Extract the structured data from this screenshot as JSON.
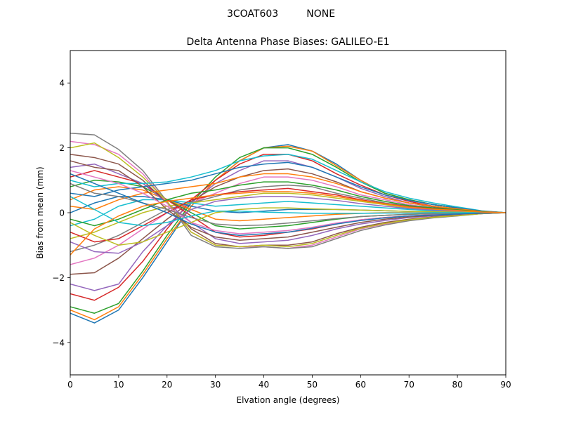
{
  "figure": {
    "suptitle": "3COAT603         NONE"
  },
  "chart_data": {
    "type": "line",
    "title": "Delta Antenna Phase Biases: GALILEO-E1",
    "xlabel": "Elvation angle (degrees)",
    "ylabel": "Bias from mean (mm)",
    "xlim": [
      0,
      90
    ],
    "ylim": [
      -5,
      5
    ],
    "xticks": [
      0,
      10,
      20,
      30,
      40,
      50,
      60,
      70,
      80,
      90
    ],
    "yticks": [
      -4,
      -2,
      0,
      2,
      4
    ],
    "ytick_labels": [
      "−4",
      "−2",
      "0",
      "2",
      "4"
    ],
    "grid": false,
    "legend": "none",
    "colors": [
      "#1f77b4",
      "#ff7f0e",
      "#2ca02c",
      "#d62728",
      "#9467bd",
      "#8c564b",
      "#e377c2",
      "#7f7f7f",
      "#bcbd22",
      "#17becf"
    ],
    "x": [
      0,
      5,
      10,
      15,
      20,
      25,
      30,
      35,
      40,
      45,
      50,
      55,
      60,
      65,
      70,
      75,
      80,
      85,
      90
    ],
    "series": [
      {
        "values": [
          -3.1,
          -3.4,
          -3.0,
          -2.0,
          -0.9,
          0.2,
          1.0,
          1.6,
          2.0,
          2.1,
          1.9,
          1.5,
          1.0,
          0.6,
          0.4,
          0.25,
          0.15,
          0.05,
          0.0
        ]
      },
      {
        "values": [
          -3.0,
          -3.3,
          -2.9,
          -1.9,
          -0.8,
          0.2,
          1.0,
          1.6,
          2.0,
          2.05,
          1.9,
          1.45,
          1.0,
          0.6,
          0.4,
          0.25,
          0.15,
          0.05,
          0.0
        ]
      },
      {
        "values": [
          -2.9,
          -3.1,
          -2.8,
          -1.8,
          -0.7,
          0.3,
          1.1,
          1.7,
          2.0,
          2.0,
          1.8,
          1.4,
          0.95,
          0.6,
          0.4,
          0.25,
          0.15,
          0.05,
          0.0
        ]
      },
      {
        "values": [
          -2.5,
          -2.7,
          -2.3,
          -1.5,
          -0.5,
          0.4,
          1.0,
          1.5,
          1.8,
          1.8,
          1.6,
          1.2,
          0.85,
          0.55,
          0.35,
          0.2,
          0.12,
          0.04,
          0.0
        ]
      },
      {
        "values": [
          -2.2,
          -2.4,
          -2.2,
          -1.2,
          -0.4,
          0.3,
          0.9,
          1.3,
          1.6,
          1.6,
          1.4,
          1.1,
          0.75,
          0.5,
          0.3,
          0.2,
          0.1,
          0.04,
          0.0
        ]
      },
      {
        "values": [
          -1.9,
          -1.85,
          -1.4,
          -0.8,
          -0.2,
          0.35,
          0.8,
          1.1,
          1.3,
          1.35,
          1.2,
          0.95,
          0.65,
          0.45,
          0.3,
          0.18,
          0.1,
          0.03,
          0.0
        ]
      },
      {
        "values": [
          -1.6,
          -1.4,
          -1.0,
          -0.5,
          0.0,
          0.3,
          0.6,
          0.9,
          1.1,
          1.1,
          1.0,
          0.8,
          0.55,
          0.4,
          0.25,
          0.15,
          0.08,
          0.03,
          0.0
        ]
      },
      {
        "values": [
          -1.2,
          -1.0,
          -0.7,
          -0.3,
          0.1,
          0.3,
          0.5,
          0.7,
          0.8,
          0.85,
          0.8,
          0.6,
          0.45,
          0.3,
          0.2,
          0.12,
          0.07,
          0.02,
          0.0
        ]
      },
      {
        "values": [
          -0.8,
          -0.6,
          -0.3,
          0.0,
          0.2,
          0.3,
          0.4,
          0.5,
          0.6,
          0.6,
          0.55,
          0.45,
          0.35,
          0.25,
          0.15,
          0.1,
          0.05,
          0.02,
          0.0
        ]
      },
      {
        "values": [
          -0.4,
          -0.2,
          0.2,
          0.4,
          0.4,
          0.3,
          0.2,
          0.25,
          0.3,
          0.35,
          0.3,
          0.25,
          0.2,
          0.15,
          0.1,
          0.06,
          0.04,
          0.01,
          0.0
        ]
      },
      {
        "values": [
          0.0,
          0.3,
          0.5,
          0.5,
          0.4,
          0.2,
          0.05,
          0.0,
          0.05,
          0.1,
          0.1,
          0.1,
          0.08,
          0.06,
          0.04,
          0.03,
          0.02,
          0.01,
          0.0
        ]
      },
      {
        "values": [
          0.4,
          0.7,
          0.8,
          0.7,
          0.4,
          0.1,
          -0.2,
          -0.25,
          -0.2,
          -0.15,
          -0.1,
          -0.05,
          -0.02,
          0.0,
          0.0,
          0.0,
          0.0,
          0.0,
          0.0
        ]
      },
      {
        "values": [
          0.8,
          1.0,
          0.95,
          0.8,
          0.4,
          0.0,
          -0.4,
          -0.5,
          -0.45,
          -0.4,
          -0.3,
          -0.2,
          -0.12,
          -0.08,
          -0.05,
          -0.03,
          -0.02,
          -0.01,
          0.0
        ]
      },
      {
        "values": [
          1.1,
          1.3,
          1.1,
          0.9,
          0.4,
          -0.1,
          -0.6,
          -0.75,
          -0.7,
          -0.6,
          -0.5,
          -0.35,
          -0.22,
          -0.15,
          -0.1,
          -0.06,
          -0.04,
          -0.01,
          0.0
        ]
      },
      {
        "values": [
          1.4,
          1.5,
          1.2,
          0.9,
          0.3,
          -0.3,
          -0.8,
          -0.95,
          -0.9,
          -0.85,
          -0.7,
          -0.5,
          -0.35,
          -0.24,
          -0.15,
          -0.1,
          -0.06,
          -0.02,
          0.0
        ]
      },
      {
        "values": [
          1.8,
          1.7,
          1.5,
          1.0,
          0.3,
          -0.5,
          -0.95,
          -1.05,
          -1.0,
          -1.0,
          -0.9,
          -0.65,
          -0.45,
          -0.3,
          -0.2,
          -0.13,
          -0.08,
          -0.03,
          0.0
        ]
      },
      {
        "values": [
          2.2,
          2.1,
          1.8,
          1.2,
          0.3,
          -0.6,
          -1.0,
          -1.05,
          -1.05,
          -1.1,
          -1.0,
          -0.75,
          -0.5,
          -0.35,
          -0.23,
          -0.15,
          -0.09,
          -0.03,
          0.0
        ]
      },
      {
        "values": [
          2.45,
          2.4,
          1.95,
          1.3,
          0.35,
          -0.7,
          -1.05,
          -1.1,
          -1.05,
          -1.1,
          -1.05,
          -0.8,
          -0.55,
          -0.38,
          -0.25,
          -0.16,
          -0.1,
          -0.03,
          0.0
        ]
      },
      {
        "values": [
          2.0,
          2.15,
          1.7,
          1.1,
          0.35,
          -0.6,
          -1.0,
          -1.05,
          -1.0,
          -1.05,
          -0.95,
          -0.7,
          -0.48,
          -0.33,
          -0.22,
          -0.14,
          -0.09,
          -0.03,
          0.0
        ]
      },
      {
        "values": [
          1.0,
          0.8,
          0.9,
          0.9,
          0.95,
          1.1,
          1.3,
          1.6,
          1.75,
          1.8,
          1.65,
          1.3,
          0.95,
          0.65,
          0.45,
          0.3,
          0.18,
          0.06,
          0.0
        ]
      },
      {
        "values": [
          0.6,
          0.5,
          0.7,
          0.8,
          0.9,
          1.0,
          1.2,
          1.4,
          1.5,
          1.55,
          1.4,
          1.1,
          0.8,
          0.55,
          0.38,
          0.25,
          0.15,
          0.05,
          0.0
        ]
      },
      {
        "values": [
          0.2,
          0.1,
          0.4,
          0.6,
          0.7,
          0.8,
          0.9,
          1.1,
          1.2,
          1.2,
          1.1,
          0.9,
          0.65,
          0.45,
          0.3,
          0.2,
          0.12,
          0.04,
          0.0
        ]
      },
      {
        "values": [
          -0.2,
          -0.4,
          -0.2,
          0.1,
          0.4,
          0.6,
          0.7,
          0.85,
          0.95,
          0.95,
          0.85,
          0.7,
          0.5,
          0.35,
          0.22,
          0.15,
          0.09,
          0.03,
          0.0
        ]
      },
      {
        "values": [
          -0.6,
          -0.9,
          -0.8,
          -0.4,
          0.0,
          0.4,
          0.55,
          0.65,
          0.7,
          0.75,
          0.65,
          0.55,
          0.4,
          0.28,
          0.18,
          0.12,
          0.07,
          0.02,
          0.0
        ]
      },
      {
        "values": [
          -0.9,
          -1.2,
          -1.25,
          -0.9,
          -0.4,
          0.1,
          0.35,
          0.45,
          0.5,
          0.5,
          0.45,
          0.38,
          0.28,
          0.2,
          0.13,
          0.08,
          0.05,
          0.02,
          0.0
        ]
      },
      {
        "values": [
          1.6,
          1.4,
          1.3,
          0.8,
          0.1,
          -0.45,
          -0.75,
          -0.85,
          -0.8,
          -0.75,
          -0.6,
          -0.45,
          -0.3,
          -0.2,
          -0.13,
          -0.08,
          -0.05,
          -0.02,
          0.0
        ]
      },
      {
        "values": [
          1.3,
          1.1,
          0.9,
          0.6,
          0.2,
          -0.3,
          -0.55,
          -0.65,
          -0.6,
          -0.55,
          -0.45,
          -0.32,
          -0.22,
          -0.15,
          -0.1,
          -0.06,
          -0.04,
          -0.01,
          0.0
        ]
      },
      {
        "values": [
          0.9,
          0.6,
          0.5,
          0.3,
          0.1,
          -0.15,
          -0.35,
          -0.4,
          -0.38,
          -0.32,
          -0.25,
          -0.18,
          -0.12,
          -0.08,
          -0.05,
          -0.03,
          -0.02,
          -0.01,
          0.0
        ]
      },
      {
        "values": [
          -0.3,
          -0.7,
          -1.0,
          -0.9,
          -0.6,
          -0.3,
          0.0,
          0.1,
          0.15,
          0.15,
          0.12,
          0.1,
          0.08,
          0.06,
          0.04,
          0.03,
          0.02,
          0.01,
          0.0
        ]
      },
      {
        "values": [
          0.5,
          0.1,
          -0.3,
          -0.4,
          -0.3,
          -0.1,
          0.05,
          0.05,
          0.02,
          0.0,
          -0.02,
          -0.02,
          -0.02,
          -0.01,
          -0.01,
          0.0,
          0.0,
          0.0,
          0.0
        ]
      },
      {
        "values": [
          1.2,
          0.9,
          0.6,
          0.3,
          0.0,
          -0.35,
          -0.6,
          -0.7,
          -0.65,
          -0.6,
          -0.48,
          -0.35,
          -0.24,
          -0.16,
          -0.1,
          -0.07,
          -0.04,
          -0.01,
          0.0
        ]
      },
      {
        "values": [
          -1.3,
          -0.5,
          -0.1,
          0.2,
          0.35,
          0.45,
          0.55,
          0.6,
          0.65,
          0.65,
          0.6,
          0.5,
          0.38,
          0.27,
          0.17,
          0.11,
          0.07,
          0.02,
          0.0
        ]
      }
    ]
  }
}
